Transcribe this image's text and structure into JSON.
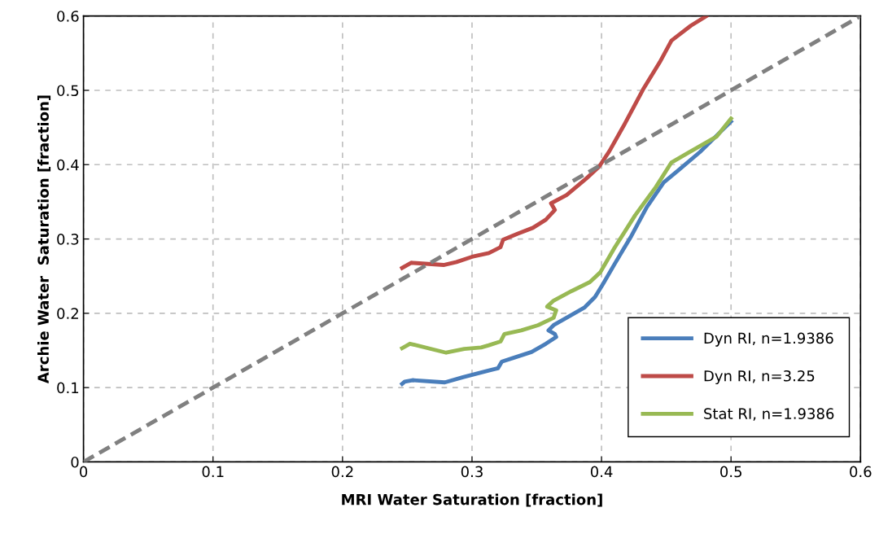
{
  "chart_data": {
    "type": "line",
    "xlabel": "MRI Water Saturation [fraction]",
    "ylabel": "Archie Water  Saturation [fraction]",
    "xlim": [
      0,
      0.6
    ],
    "ylim": [
      0,
      0.6
    ],
    "xticks": [
      0,
      0.1,
      0.2,
      0.3,
      0.4,
      0.5,
      0.6
    ],
    "yticks": [
      0,
      0.1,
      0.2,
      0.3,
      0.4,
      0.5,
      0.6
    ],
    "grid": true,
    "legend": "bottom right",
    "marker": "none",
    "series": [
      {
        "name": "Dyn RI, n=1.9386",
        "color": "#4a7ebb",
        "line_style": "solid",
        "x": [
          0.246,
          0.248,
          0.254,
          0.279,
          0.293,
          0.313,
          0.32,
          0.323,
          0.332,
          0.346,
          0.357,
          0.365,
          0.364,
          0.359,
          0.363,
          0.376,
          0.387,
          0.395,
          0.401,
          0.41,
          0.423,
          0.435,
          0.448,
          0.459,
          0.476,
          0.5
        ],
        "values": [
          0.105,
          0.108,
          0.11,
          0.107,
          0.114,
          0.123,
          0.126,
          0.135,
          0.14,
          0.148,
          0.159,
          0.168,
          0.172,
          0.177,
          0.184,
          0.197,
          0.208,
          0.222,
          0.239,
          0.266,
          0.304,
          0.343,
          0.376,
          0.392,
          0.417,
          0.458
        ]
      },
      {
        "name": "Dyn RI, n=3.25",
        "color": "#be4b48",
        "line_style": "solid",
        "x": [
          0.246,
          0.253,
          0.278,
          0.288,
          0.3,
          0.313,
          0.322,
          0.324,
          0.335,
          0.347,
          0.357,
          0.364,
          0.361,
          0.373,
          0.388,
          0.398,
          0.406,
          0.417,
          0.432,
          0.445,
          0.454,
          0.469,
          0.481
        ],
        "values": [
          0.261,
          0.268,
          0.265,
          0.269,
          0.276,
          0.281,
          0.289,
          0.299,
          0.307,
          0.315,
          0.326,
          0.339,
          0.348,
          0.359,
          0.381,
          0.397,
          0.418,
          0.452,
          0.501,
          0.538,
          0.567,
          0.587,
          0.6
        ]
      },
      {
        "name": "Stat RI, n=1.9386",
        "color": "#98b954",
        "line_style": "solid",
        "x": [
          0.246,
          0.252,
          0.28,
          0.294,
          0.307,
          0.313,
          0.322,
          0.325,
          0.338,
          0.351,
          0.363,
          0.365,
          0.358,
          0.363,
          0.377,
          0.391,
          0.399,
          0.41,
          0.426,
          0.442,
          0.454,
          0.467,
          0.489,
          0.5
        ],
        "values": [
          0.153,
          0.159,
          0.147,
          0.152,
          0.154,
          0.157,
          0.162,
          0.172,
          0.177,
          0.184,
          0.194,
          0.204,
          0.209,
          0.217,
          0.23,
          0.242,
          0.255,
          0.288,
          0.332,
          0.37,
          0.403,
          0.416,
          0.438,
          0.462
        ]
      },
      {
        "color": "#808080",
        "line_style": "dashed",
        "x": [
          0,
          0.6
        ],
        "values": [
          0,
          0.6
        ]
      }
    ]
  }
}
